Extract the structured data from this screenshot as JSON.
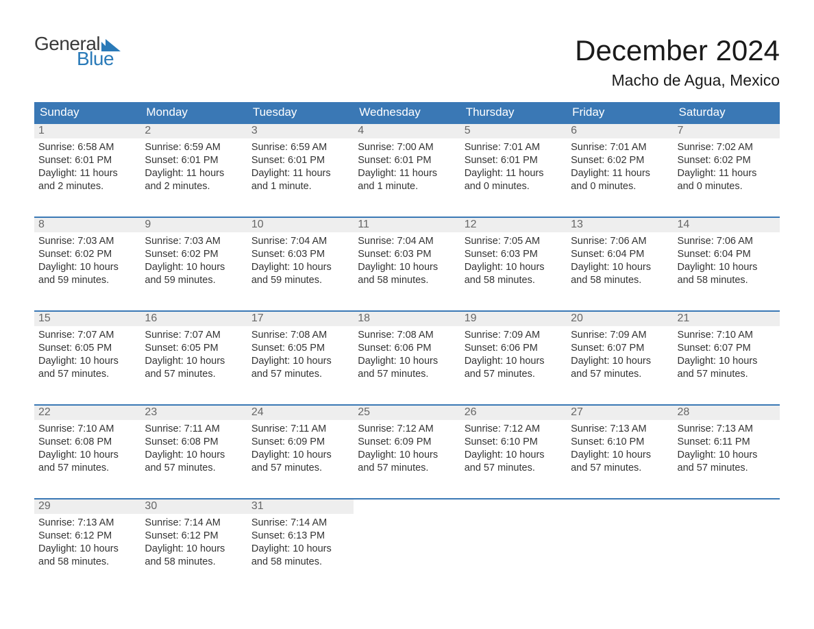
{
  "logo": {
    "text_general": "General",
    "text_blue": "Blue",
    "color_general": "#3a3a3a",
    "color_blue": "#2a7ab8",
    "flag_color": "#2a7ab8"
  },
  "heading": {
    "title": "December 2024",
    "location": "Macho de Agua, Mexico",
    "title_fontsize": 42,
    "location_fontsize": 23
  },
  "colors": {
    "header_bg": "#3a78b5",
    "header_text": "#ffffff",
    "daynum_bg": "#eeeeee",
    "daynum_text": "#666666",
    "week_border": "#3a78b5",
    "body_text": "#333333",
    "background": "#ffffff"
  },
  "day_names": [
    "Sunday",
    "Monday",
    "Tuesday",
    "Wednesday",
    "Thursday",
    "Friday",
    "Saturday"
  ],
  "weeks": [
    [
      {
        "num": "1",
        "sunrise": "6:58 AM",
        "sunset": "6:01 PM",
        "day_h": "11",
        "day_m": "2 minutes"
      },
      {
        "num": "2",
        "sunrise": "6:59 AM",
        "sunset": "6:01 PM",
        "day_h": "11",
        "day_m": "2 minutes"
      },
      {
        "num": "3",
        "sunrise": "6:59 AM",
        "sunset": "6:01 PM",
        "day_h": "11",
        "day_m": "1 minute"
      },
      {
        "num": "4",
        "sunrise": "7:00 AM",
        "sunset": "6:01 PM",
        "day_h": "11",
        "day_m": "1 minute"
      },
      {
        "num": "5",
        "sunrise": "7:01 AM",
        "sunset": "6:01 PM",
        "day_h": "11",
        "day_m": "0 minutes"
      },
      {
        "num": "6",
        "sunrise": "7:01 AM",
        "sunset": "6:02 PM",
        "day_h": "11",
        "day_m": "0 minutes"
      },
      {
        "num": "7",
        "sunrise": "7:02 AM",
        "sunset": "6:02 PM",
        "day_h": "11",
        "day_m": "0 minutes"
      }
    ],
    [
      {
        "num": "8",
        "sunrise": "7:03 AM",
        "sunset": "6:02 PM",
        "day_h": "10",
        "day_m": "59 minutes"
      },
      {
        "num": "9",
        "sunrise": "7:03 AM",
        "sunset": "6:02 PM",
        "day_h": "10",
        "day_m": "59 minutes"
      },
      {
        "num": "10",
        "sunrise": "7:04 AM",
        "sunset": "6:03 PM",
        "day_h": "10",
        "day_m": "59 minutes"
      },
      {
        "num": "11",
        "sunrise": "7:04 AM",
        "sunset": "6:03 PM",
        "day_h": "10",
        "day_m": "58 minutes"
      },
      {
        "num": "12",
        "sunrise": "7:05 AM",
        "sunset": "6:03 PM",
        "day_h": "10",
        "day_m": "58 minutes"
      },
      {
        "num": "13",
        "sunrise": "7:06 AM",
        "sunset": "6:04 PM",
        "day_h": "10",
        "day_m": "58 minutes"
      },
      {
        "num": "14",
        "sunrise": "7:06 AM",
        "sunset": "6:04 PM",
        "day_h": "10",
        "day_m": "58 minutes"
      }
    ],
    [
      {
        "num": "15",
        "sunrise": "7:07 AM",
        "sunset": "6:05 PM",
        "day_h": "10",
        "day_m": "57 minutes"
      },
      {
        "num": "16",
        "sunrise": "7:07 AM",
        "sunset": "6:05 PM",
        "day_h": "10",
        "day_m": "57 minutes"
      },
      {
        "num": "17",
        "sunrise": "7:08 AM",
        "sunset": "6:05 PM",
        "day_h": "10",
        "day_m": "57 minutes"
      },
      {
        "num": "18",
        "sunrise": "7:08 AM",
        "sunset": "6:06 PM",
        "day_h": "10",
        "day_m": "57 minutes"
      },
      {
        "num": "19",
        "sunrise": "7:09 AM",
        "sunset": "6:06 PM",
        "day_h": "10",
        "day_m": "57 minutes"
      },
      {
        "num": "20",
        "sunrise": "7:09 AM",
        "sunset": "6:07 PM",
        "day_h": "10",
        "day_m": "57 minutes"
      },
      {
        "num": "21",
        "sunrise": "7:10 AM",
        "sunset": "6:07 PM",
        "day_h": "10",
        "day_m": "57 minutes"
      }
    ],
    [
      {
        "num": "22",
        "sunrise": "7:10 AM",
        "sunset": "6:08 PM",
        "day_h": "10",
        "day_m": "57 minutes"
      },
      {
        "num": "23",
        "sunrise": "7:11 AM",
        "sunset": "6:08 PM",
        "day_h": "10",
        "day_m": "57 minutes"
      },
      {
        "num": "24",
        "sunrise": "7:11 AM",
        "sunset": "6:09 PM",
        "day_h": "10",
        "day_m": "57 minutes"
      },
      {
        "num": "25",
        "sunrise": "7:12 AM",
        "sunset": "6:09 PM",
        "day_h": "10",
        "day_m": "57 minutes"
      },
      {
        "num": "26",
        "sunrise": "7:12 AM",
        "sunset": "6:10 PM",
        "day_h": "10",
        "day_m": "57 minutes"
      },
      {
        "num": "27",
        "sunrise": "7:13 AM",
        "sunset": "6:10 PM",
        "day_h": "10",
        "day_m": "57 minutes"
      },
      {
        "num": "28",
        "sunrise": "7:13 AM",
        "sunset": "6:11 PM",
        "day_h": "10",
        "day_m": "57 minutes"
      }
    ],
    [
      {
        "num": "29",
        "sunrise": "7:13 AM",
        "sunset": "6:12 PM",
        "day_h": "10",
        "day_m": "58 minutes"
      },
      {
        "num": "30",
        "sunrise": "7:14 AM",
        "sunset": "6:12 PM",
        "day_h": "10",
        "day_m": "58 minutes"
      },
      {
        "num": "31",
        "sunrise": "7:14 AM",
        "sunset": "6:13 PM",
        "day_h": "10",
        "day_m": "58 minutes"
      },
      null,
      null,
      null,
      null
    ]
  ],
  "labels": {
    "sunrise": "Sunrise: ",
    "sunset": "Sunset: ",
    "daylight": "Daylight: ",
    "hours": " hours",
    "and": "and "
  }
}
